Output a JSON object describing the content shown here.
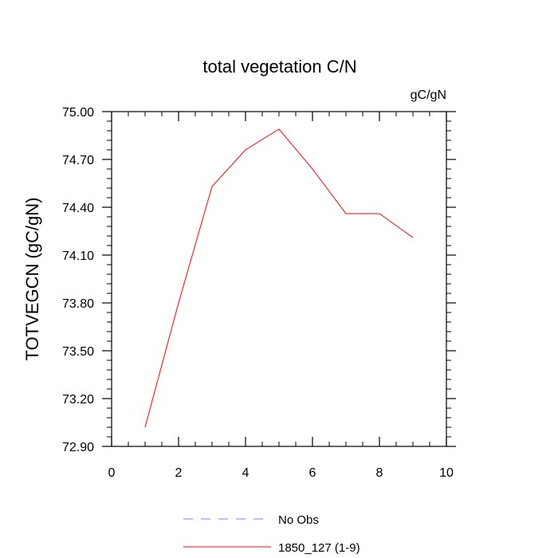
{
  "chart_data": {
    "type": "line",
    "title": "total vegetation C/N",
    "units": "gC/gN",
    "ylabel": "TOTVEGCN  (gC/gN)",
    "xlabel": "",
    "xlim": [
      0,
      10
    ],
    "ylim": [
      72.9,
      75.0
    ],
    "xticks": [
      0,
      2,
      4,
      6,
      8,
      10
    ],
    "xtick_labels": [
      "0",
      "2",
      "4",
      "6",
      "8",
      "10"
    ],
    "yticks": [
      72.9,
      73.2,
      73.5,
      73.8,
      74.1,
      74.4,
      74.7,
      75.0
    ],
    "ytick_labels": [
      "72.90",
      "73.20",
      "73.50",
      "73.80",
      "74.10",
      "74.40",
      "74.70",
      "75.00"
    ],
    "grid": false,
    "legend_position": "bottom",
    "series": [
      {
        "name": "No Obs",
        "color": "#8080ff",
        "dash": "dashed",
        "x": [],
        "y": []
      },
      {
        "name": "1850_127 (1-9)",
        "color": "#ff0000",
        "dash": "solid",
        "x": [
          1,
          2,
          3,
          4,
          5,
          6,
          7,
          8,
          9
        ],
        "y": [
          73.02,
          73.8,
          74.53,
          74.76,
          74.89,
          74.64,
          74.36,
          74.36,
          74.21
        ]
      }
    ]
  }
}
